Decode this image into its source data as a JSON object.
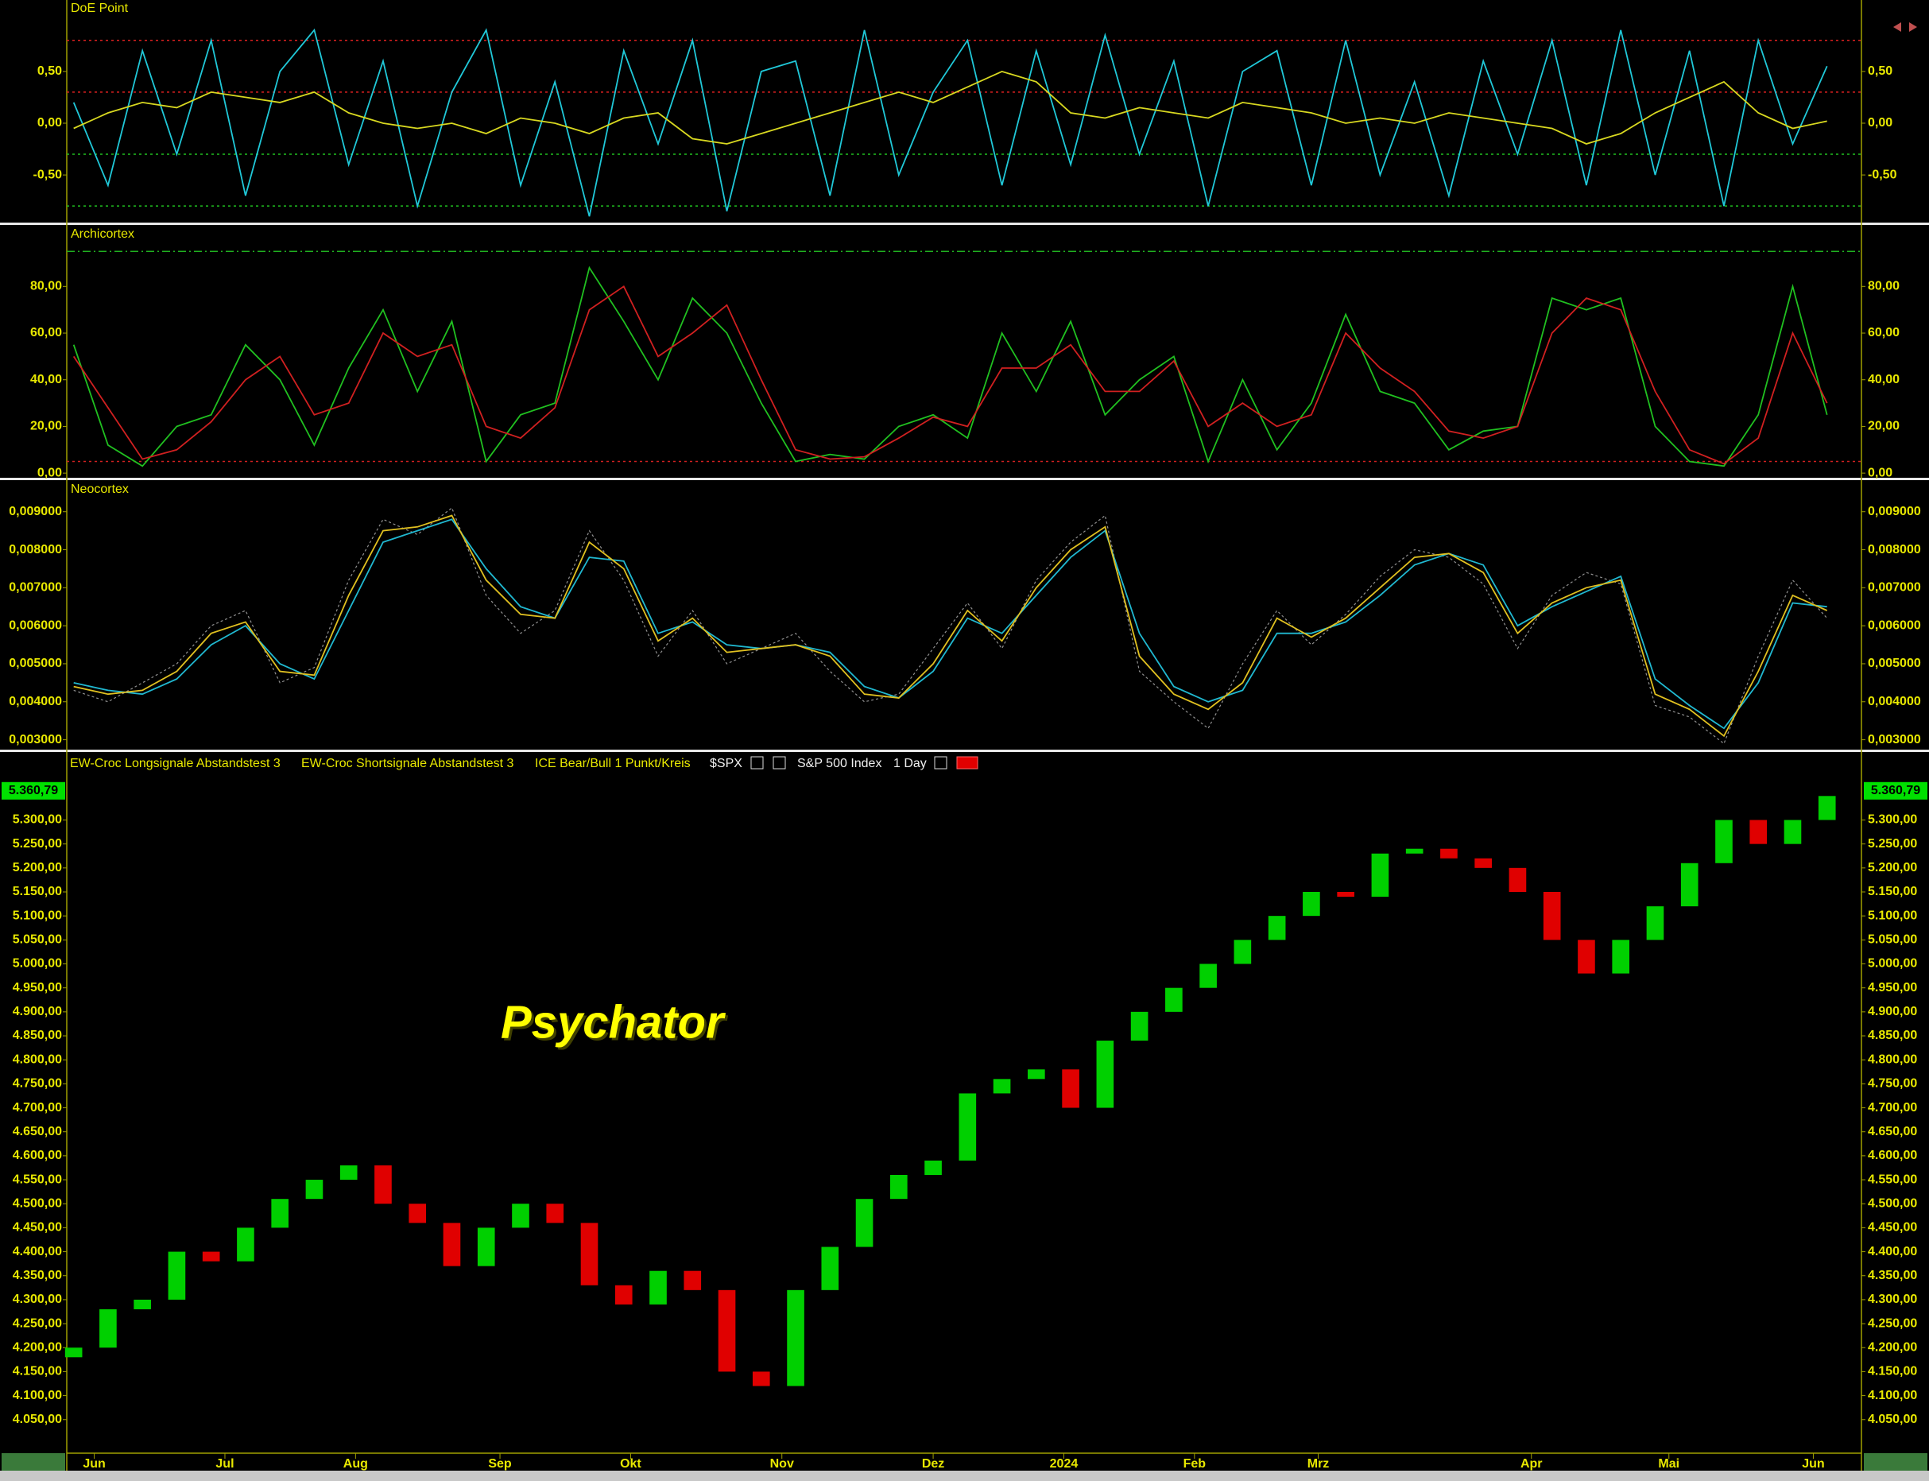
{
  "chart_data": [
    {
      "type": "line",
      "title": "DoE Point",
      "x": [
        0,
        5,
        10,
        15,
        20,
        25,
        30,
        35,
        40,
        45,
        50,
        55,
        60,
        65,
        70,
        75,
        80,
        85,
        90,
        95,
        100,
        105,
        110,
        115,
        120,
        125,
        130,
        135,
        140,
        145,
        150,
        155,
        160,
        165,
        170,
        175,
        180,
        185,
        190,
        195,
        200,
        205,
        210,
        215,
        220,
        225,
        230,
        235,
        240,
        245,
        250,
        255
      ],
      "xlim": [
        -1,
        260
      ],
      "ylim": [
        -0.96,
        1.19
      ],
      "yticks": [
        {
          "value": 0.5,
          "label": "0,50"
        },
        {
          "value": 0,
          "label": "0,00"
        },
        {
          "value": -0.5,
          "label": "-0,50"
        }
      ],
      "hlines": [
        {
          "value": 0.8,
          "color": "#e02020"
        },
        {
          "value": 0.3,
          "color": "#e02020"
        },
        {
          "value": -0.3,
          "color": "#20c020"
        },
        {
          "value": -0.8,
          "color": "#20c020"
        }
      ],
      "series": [
        {
          "color": "#20c8d8",
          "style": "solid",
          "values": [
            0.2,
            -0.6,
            0.7,
            -0.3,
            0.8,
            -0.7,
            0.5,
            0.9,
            -0.4,
            0.6,
            -0.8,
            0.3,
            0.9,
            -0.6,
            0.4,
            -0.9,
            0.7,
            -0.2,
            0.8,
            -0.85,
            0.5,
            0.6,
            -0.7,
            0.9,
            -0.5,
            0.3,
            0.8,
            -0.6,
            0.7,
            -0.4,
            0.85,
            -0.3,
            0.6,
            -0.8,
            0.5,
            0.7,
            -0.6,
            0.8,
            -0.5,
            0.4,
            -0.7,
            0.6,
            -0.3,
            0.8,
            -0.6,
            0.9,
            -0.5,
            0.7,
            -0.8,
            0.8,
            -0.2,
            0.55
          ]
        },
        {
          "color": "#d8d820",
          "style": "solid",
          "values": [
            -0.05,
            0.1,
            0.2,
            0.15,
            0.3,
            0.25,
            0.2,
            0.3,
            0.1,
            0.0,
            -0.05,
            0.0,
            -0.1,
            0.05,
            0.0,
            -0.1,
            0.05,
            0.1,
            -0.15,
            -0.2,
            -0.1,
            0.0,
            0.1,
            0.2,
            0.3,
            0.2,
            0.35,
            0.5,
            0.4,
            0.1,
            0.05,
            0.15,
            0.1,
            0.05,
            0.2,
            0.15,
            0.1,
            0.0,
            0.05,
            0.0,
            0.1,
            0.05,
            0.0,
            -0.05,
            -0.2,
            -0.1,
            0.1,
            0.25,
            0.4,
            0.1,
            -0.05,
            0.02
          ]
        }
      ]
    },
    {
      "type": "line",
      "title": "Archicortex",
      "x": [
        0,
        5,
        10,
        15,
        20,
        25,
        30,
        35,
        40,
        45,
        50,
        55,
        60,
        65,
        70,
        75,
        80,
        85,
        90,
        95,
        100,
        105,
        110,
        115,
        120,
        125,
        130,
        135,
        140,
        145,
        150,
        155,
        160,
        165,
        170,
        175,
        180,
        185,
        190,
        195,
        200,
        205,
        210,
        215,
        220,
        225,
        230,
        235,
        240,
        245,
        250,
        255
      ],
      "xlim": [
        -1,
        260
      ],
      "ylim": [
        -2,
        106
      ],
      "yticks": [
        {
          "value": 0,
          "label": "0,00"
        },
        {
          "value": 20,
          "label": "20,00"
        },
        {
          "value": 40,
          "label": "40,00"
        },
        {
          "value": 60,
          "label": "60,00"
        },
        {
          "value": 80,
          "label": "80,00"
        }
      ],
      "hlines": [
        {
          "value": 95,
          "color": "#20b020"
        },
        {
          "value": 5,
          "color": "#d02020"
        }
      ],
      "series": [
        {
          "color": "#20c020",
          "style": "solid",
          "values": [
            55,
            12,
            3,
            20,
            25,
            55,
            40,
            12,
            45,
            70,
            35,
            65,
            5,
            25,
            30,
            88,
            65,
            40,
            75,
            60,
            30,
            5,
            8,
            6,
            20,
            25,
            15,
            60,
            35,
            65,
            25,
            40,
            50,
            5,
            40,
            10,
            30,
            68,
            35,
            30,
            10,
            18,
            20,
            75,
            70,
            75,
            20,
            5,
            3,
            25,
            80,
            25
          ]
        },
        {
          "color": "#d02020",
          "style": "solid",
          "values": [
            50,
            28,
            6,
            10,
            22,
            40,
            50,
            25,
            30,
            60,
            50,
            55,
            20,
            15,
            28,
            70,
            80,
            50,
            60,
            72,
            40,
            10,
            6,
            7,
            15,
            24,
            20,
            45,
            45,
            55,
            35,
            35,
            48,
            20,
            30,
            20,
            25,
            60,
            45,
            35,
            18,
            15,
            20,
            60,
            75,
            70,
            35,
            10,
            4,
            15,
            60,
            30
          ]
        }
      ]
    },
    {
      "type": "line",
      "title": "Neocortex",
      "x": [
        0,
        5,
        10,
        15,
        20,
        25,
        30,
        35,
        40,
        45,
        50,
        55,
        60,
        65,
        70,
        75,
        80,
        85,
        90,
        95,
        100,
        105,
        110,
        115,
        120,
        125,
        130,
        135,
        140,
        145,
        150,
        155,
        160,
        165,
        170,
        175,
        180,
        185,
        190,
        195,
        200,
        205,
        210,
        215,
        220,
        225,
        230,
        235,
        240,
        245,
        250,
        255
      ],
      "xlim": [
        -1,
        260
      ],
      "ylim": [
        0.00274,
        0.00981
      ],
      "yticks": [
        {
          "value": 0.003,
          "label": "0,003000"
        },
        {
          "value": 0.004,
          "label": "0,004000"
        },
        {
          "value": 0.005,
          "label": "0,005000"
        },
        {
          "value": 0.006,
          "label": "0,006000"
        },
        {
          "value": 0.007,
          "label": "0,007000"
        },
        {
          "value": 0.008,
          "label": "0,008000"
        },
        {
          "value": 0.009,
          "label": "0,009000"
        }
      ],
      "series": [
        {
          "color": "#909090",
          "style": "dotted",
          "values": [
            0.0043,
            0.004,
            0.0045,
            0.005,
            0.006,
            0.0064,
            0.0045,
            0.0049,
            0.0072,
            0.0088,
            0.0084,
            0.0091,
            0.0068,
            0.0058,
            0.0064,
            0.0085,
            0.0072,
            0.0052,
            0.0064,
            0.005,
            0.0054,
            0.0058,
            0.0048,
            0.004,
            0.0042,
            0.0054,
            0.0066,
            0.0054,
            0.0072,
            0.0082,
            0.0089,
            0.0048,
            0.004,
            0.0033,
            0.005,
            0.0064,
            0.0055,
            0.0063,
            0.0073,
            0.008,
            0.0078,
            0.0071,
            0.0054,
            0.0068,
            0.0074,
            0.0071,
            0.0039,
            0.0036,
            0.0029,
            0.0052,
            0.0072,
            0.0062
          ]
        },
        {
          "color": "#20b8d0",
          "style": "solid",
          "values": [
            0.0045,
            0.0043,
            0.0042,
            0.0046,
            0.0055,
            0.006,
            0.005,
            0.0046,
            0.0064,
            0.0082,
            0.0085,
            0.0088,
            0.0075,
            0.0065,
            0.0062,
            0.0078,
            0.0077,
            0.0058,
            0.0061,
            0.0055,
            0.0054,
            0.0055,
            0.0053,
            0.0044,
            0.0041,
            0.0048,
            0.0062,
            0.0058,
            0.0068,
            0.0078,
            0.0085,
            0.0058,
            0.0044,
            0.004,
            0.0043,
            0.0058,
            0.0058,
            0.0061,
            0.0068,
            0.0076,
            0.0079,
            0.0076,
            0.006,
            0.0065,
            0.0069,
            0.0073,
            0.0046,
            0.0039,
            0.0033,
            0.0045,
            0.0066,
            0.0065
          ]
        },
        {
          "color": "#e0c020",
          "style": "solid",
          "values": [
            0.0044,
            0.0042,
            0.0043,
            0.0048,
            0.0058,
            0.0061,
            0.0048,
            0.0047,
            0.0068,
            0.0085,
            0.0086,
            0.0089,
            0.0072,
            0.0063,
            0.0062,
            0.0082,
            0.0075,
            0.0056,
            0.0062,
            0.0053,
            0.0054,
            0.0055,
            0.0052,
            0.0042,
            0.0041,
            0.005,
            0.0064,
            0.0056,
            0.007,
            0.008,
            0.0086,
            0.0052,
            0.0042,
            0.0038,
            0.0045,
            0.0062,
            0.0057,
            0.0062,
            0.007,
            0.0078,
            0.0079,
            0.0074,
            0.0058,
            0.0066,
            0.007,
            0.0072,
            0.0042,
            0.0038,
            0.0031,
            0.0048,
            0.0068,
            0.0064
          ]
        }
      ]
    },
    {
      "type": "candlestick",
      "header": [
        "EW-Croc Longsignale Abstandstest 3",
        "EW-Croc Shortsignale Abstandstest 3",
        "ICE Bear/Bull 1 Punkt/Kreis",
        "$SPX",
        "S&P 500 Index",
        "1 Day"
      ],
      "annotation": "Psychator",
      "up_color": "#00d000",
      "down_color": "#e00000",
      "x": [
        0,
        5,
        10,
        15,
        20,
        25,
        30,
        35,
        40,
        45,
        50,
        55,
        60,
        65,
        70,
        75,
        80,
        85,
        90,
        95,
        100,
        105,
        110,
        115,
        120,
        125,
        130,
        135,
        140,
        145,
        150,
        155,
        160,
        165,
        170,
        175,
        180,
        185,
        190,
        195,
        200,
        205,
        210,
        215,
        220,
        225,
        230,
        235,
        240,
        245,
        250,
        255
      ],
      "open": [
        4180,
        4200,
        4280,
        4300,
        4400,
        4380,
        4450,
        4510,
        4550,
        4580,
        4500,
        4460,
        4370,
        4450,
        4500,
        4460,
        4330,
        4290,
        4360,
        4320,
        4150,
        4120,
        4320,
        4410,
        4510,
        4560,
        4590,
        4730,
        4760,
        4780,
        4700,
        4840,
        4900,
        4950,
        5000,
        5050,
        5100,
        5150,
        5140,
        5230,
        5240,
        5220,
        5200,
        5150,
        5050,
        4980,
        5050,
        5120,
        5210,
        5300,
        5250,
        5300
      ],
      "close": [
        4200,
        4280,
        4300,
        4400,
        4380,
        4450,
        4510,
        4550,
        4580,
        4500,
        4460,
        4370,
        4450,
        4500,
        4460,
        4330,
        4290,
        4360,
        4320,
        4150,
        4120,
        4320,
        4410,
        4510,
        4560,
        4590,
        4730,
        4760,
        4780,
        4700,
        4840,
        4900,
        4950,
        5000,
        5050,
        5100,
        5150,
        5140,
        5230,
        5240,
        5220,
        5200,
        5150,
        5050,
        4980,
        5050,
        5120,
        5210,
        5300,
        5250,
        5300,
        5350
      ],
      "last_price": {
        "value": 5360.79,
        "label": "5.360,79"
      },
      "xlim": [
        -1,
        260
      ],
      "ylim": [
        3980,
        5440
      ],
      "xticks": [
        {
          "value": 3,
          "label": "Jun"
        },
        {
          "value": 22,
          "label": "Jul"
        },
        {
          "value": 41,
          "label": "Aug"
        },
        {
          "value": 62,
          "label": "Sep"
        },
        {
          "value": 81,
          "label": "Okt"
        },
        {
          "value": 103,
          "label": "Nov"
        },
        {
          "value": 125,
          "label": "Dez"
        },
        {
          "value": 144,
          "label": "2024"
        },
        {
          "value": 163,
          "label": "Feb"
        },
        {
          "value": 181,
          "label": "Mrz"
        },
        {
          "value": 212,
          "label": "Apr"
        },
        {
          "value": 232,
          "label": "Mai"
        },
        {
          "value": 253,
          "label": "Jun"
        }
      ],
      "yticks": [
        {
          "value": 4050,
          "label": "4.050,00"
        },
        {
          "value": 4100,
          "label": "4.100,00"
        },
        {
          "value": 4150,
          "label": "4.150,00"
        },
        {
          "value": 4200,
          "label": "4.200,00"
        },
        {
          "value": 4250,
          "label": "4.250,00"
        },
        {
          "value": 4300,
          "label": "4.300,00"
        },
        {
          "value": 4350,
          "label": "4.350,00"
        },
        {
          "value": 4400,
          "label": "4.400,00"
        },
        {
          "value": 4450,
          "label": "4.450,00"
        },
        {
          "value": 4500,
          "label": "4.500,00"
        },
        {
          "value": 4550,
          "label": "4.550,00"
        },
        {
          "value": 4600,
          "label": "4.600,00"
        },
        {
          "value": 4650,
          "label": "4.650,00"
        },
        {
          "value": 4700,
          "label": "4.700,00"
        },
        {
          "value": 4750,
          "label": "4.750,00"
        },
        {
          "value": 4800,
          "label": "4.800,00"
        },
        {
          "value": 4850,
          "label": "4.850,00"
        },
        {
          "value": 4900,
          "label": "4.900,00"
        },
        {
          "value": 4950,
          "label": "4.950,00"
        },
        {
          "value": 5000,
          "label": "5.000,00"
        },
        {
          "value": 5050,
          "label": "5.050,00"
        },
        {
          "value": 5100,
          "label": "5.100,00"
        },
        {
          "value": 5150,
          "label": "5.150,00"
        },
        {
          "value": 5200,
          "label": "5.200,00"
        },
        {
          "value": 5250,
          "label": "5.250,00"
        },
        {
          "value": 5300,
          "label": "5.300,00"
        }
      ]
    }
  ]
}
